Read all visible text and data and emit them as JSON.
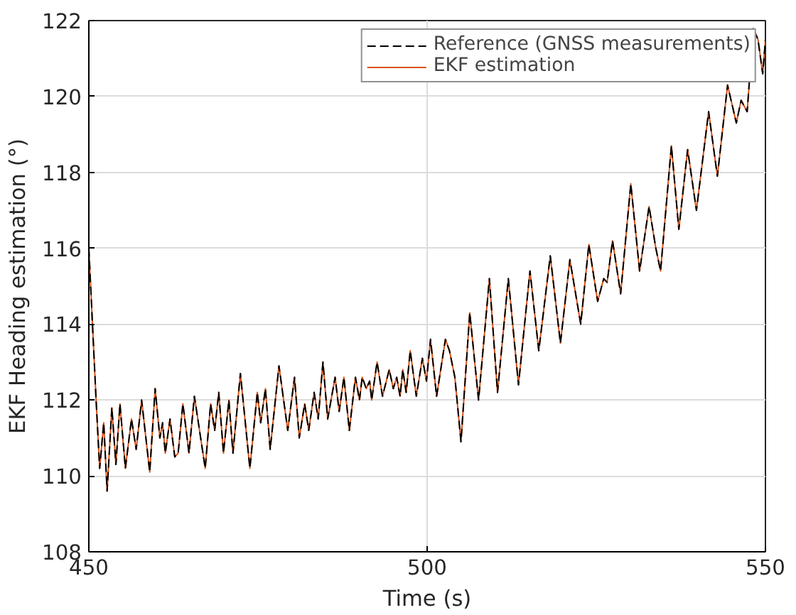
{
  "chart_data": {
    "type": "line",
    "xlabel": "Time (s)",
    "ylabel": "EKF Heading estimation (°)",
    "x": [
      450,
      451.1,
      451.6,
      452.2,
      452.7,
      453.4,
      454.0,
      454.6,
      455.4,
      456.3,
      457.0,
      457.8,
      459.0,
      459.8,
      460.5,
      460.9,
      461.3,
      462.0,
      462.7,
      463.2,
      463.9,
      464.8,
      465.6,
      467.2,
      468.0,
      468.6,
      469.2,
      469.9,
      470.7,
      471.3,
      472.4,
      473.8,
      474.9,
      475.4,
      476.1,
      476.8,
      478.1,
      479.4,
      480.4,
      481.1,
      481.9,
      482.5,
      483.3,
      483.9,
      484.6,
      485.3,
      486.4,
      487.0,
      487.7,
      488.5,
      489.4,
      490.0,
      490.4,
      491.0,
      491.5,
      491.8,
      492.6,
      493.4,
      494.4,
      495.0,
      495.5,
      496.0,
      496.4,
      496.9,
      497.5,
      498.4,
      499.3,
      499.9,
      500.5,
      501.4,
      502.7,
      503.3,
      504.1,
      505.0,
      506.3,
      507.6,
      509.2,
      510.4,
      512.0,
      513.5,
      515.2,
      516.5,
      518.2,
      519.7,
      521.1,
      522.7,
      523.9,
      525.2,
      526.1,
      526.6,
      527.4,
      528.6,
      530.1,
      531.4,
      532.8,
      533.8,
      534.5,
      536.1,
      537.2,
      538.5,
      539.8,
      541.6,
      542.9,
      544.4,
      545.7,
      546.4,
      547.3,
      548.2,
      548.9,
      549.6,
      550
    ],
    "series": [
      {
        "name": "Reference (GNSS measurements)",
        "color": "#000000",
        "line_style": "dashed",
        "values": [
          116.0,
          111.9,
          110.2,
          111.4,
          109.6,
          111.8,
          110.3,
          111.9,
          110.2,
          111.5,
          110.7,
          112.0,
          110.1,
          112.3,
          111.0,
          111.4,
          110.6,
          111.5,
          110.5,
          110.6,
          111.9,
          110.6,
          112.1,
          110.2,
          111.9,
          111.2,
          112.2,
          110.6,
          112.0,
          110.6,
          112.7,
          110.2,
          112.2,
          111.4,
          112.3,
          110.7,
          112.9,
          111.2,
          112.6,
          111.0,
          111.9,
          111.2,
          112.2,
          111.5,
          113.0,
          111.5,
          112.6,
          111.7,
          112.6,
          111.2,
          112.6,
          112.0,
          112.6,
          112.3,
          112.5,
          112.0,
          113.0,
          112.1,
          112.8,
          112.3,
          112.6,
          112.1,
          112.8,
          112.2,
          113.3,
          112.1,
          113.1,
          112.5,
          113.6,
          112.1,
          113.6,
          113.3,
          112.6,
          110.9,
          114.3,
          112.0,
          115.2,
          112.2,
          115.2,
          112.4,
          115.4,
          113.3,
          115.8,
          113.5,
          115.7,
          114.0,
          116.1,
          114.6,
          115.2,
          115.1,
          116.2,
          114.8,
          117.7,
          115.4,
          117.1,
          116.0,
          115.4,
          118.7,
          116.5,
          118.6,
          117.0,
          119.6,
          117.9,
          120.3,
          119.3,
          119.9,
          119.6,
          121.8,
          121.5,
          120.6,
          121.5
        ]
      },
      {
        "name": "EKF estimation",
        "color": "#d95319",
        "line_style": "solid",
        "values": [
          116.0,
          111.9,
          110.2,
          111.4,
          109.6,
          111.8,
          110.3,
          111.9,
          110.2,
          111.5,
          110.7,
          112.0,
          110.1,
          112.3,
          111.0,
          111.4,
          110.6,
          111.5,
          110.5,
          110.6,
          111.9,
          110.6,
          112.1,
          110.2,
          111.9,
          111.2,
          112.2,
          110.6,
          112.0,
          110.6,
          112.7,
          110.2,
          112.2,
          111.4,
          112.3,
          110.7,
          112.9,
          111.2,
          112.6,
          111.0,
          111.9,
          111.2,
          112.2,
          111.5,
          113.0,
          111.5,
          112.6,
          111.7,
          112.6,
          111.2,
          112.6,
          112.0,
          112.6,
          112.3,
          112.5,
          112.0,
          113.0,
          112.1,
          112.8,
          112.3,
          112.6,
          112.1,
          112.8,
          112.2,
          113.3,
          112.1,
          113.1,
          112.5,
          113.6,
          112.1,
          113.6,
          113.3,
          112.6,
          110.9,
          114.3,
          112.0,
          115.2,
          112.2,
          115.2,
          112.4,
          115.4,
          113.3,
          115.8,
          113.5,
          115.7,
          114.0,
          116.1,
          114.6,
          115.2,
          115.1,
          116.2,
          114.8,
          117.7,
          115.4,
          117.1,
          116.0,
          115.4,
          118.7,
          116.5,
          118.6,
          117.0,
          119.6,
          117.9,
          120.3,
          119.3,
          119.9,
          119.6,
          121.8,
          121.5,
          120.6,
          121.5
        ]
      }
    ],
    "xlim": [
      450,
      550
    ],
    "xticks": [
      450,
      500,
      550
    ],
    "ylim": [
      108,
      122
    ],
    "yticks": [
      108,
      110,
      112,
      114,
      116,
      118,
      120,
      122
    ],
    "grid": true,
    "legend": "top right"
  }
}
